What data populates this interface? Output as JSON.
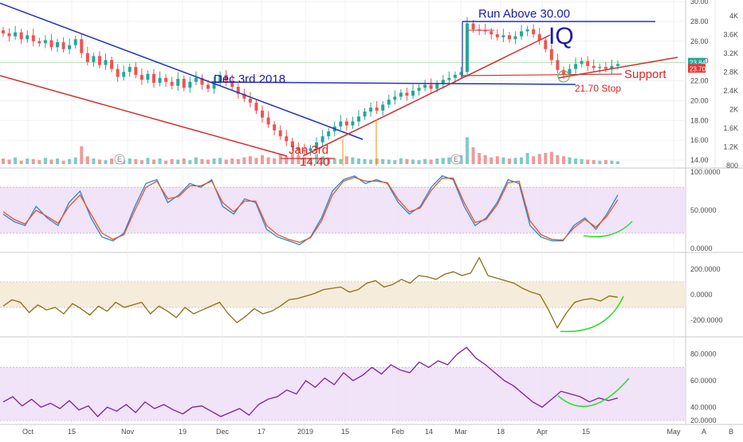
{
  "chart_data": [
    {
      "type": "candlestick",
      "symbol": "IQ",
      "price_axis": {
        "ylim": [
          13.6,
          30
        ],
        "ticks": [
          "30.00",
          "28.00",
          "26.00",
          "24.00",
          "22.00",
          "20.00",
          "18.00",
          "16.00",
          "14.00"
        ]
      },
      "volume_axis": {
        "ticks": [
          "4K",
          "3.6K",
          "3.2K",
          "2.8K",
          "2.4K",
          "2K",
          "1.6K",
          "1.2K",
          "800"
        ]
      },
      "price_badges": [
        {
          "label": "23.84",
          "color": "#26a69a"
        },
        {
          "label": "23.70",
          "color": "#e53935"
        }
      ],
      "annotations": [
        "Run Above 30.00",
        "Dec 3rd 2018",
        "Jan 3rd",
        "14.40",
        "Support",
        "21.70 Stop"
      ],
      "earnings_markers": [
        "E",
        "E"
      ],
      "closes": [
        26.8,
        26.5,
        26.9,
        26.2,
        26.6,
        26.0,
        25.8,
        26.1,
        25.4,
        25.9,
        25.2,
        25.6,
        26.2,
        24.8,
        23.9,
        24.5,
        23.6,
        24.1,
        23.2,
        22.4,
        22.9,
        23.4,
        22.6,
        22.1,
        22.7,
        21.8,
        22.3,
        21.9,
        21.5,
        22.2,
        21.3,
        21.9,
        22.3,
        21.6,
        21.2,
        21.8,
        22.6,
        22.0,
        21.4,
        20.7,
        20.2,
        19.8,
        19.0,
        18.3,
        17.6,
        17.0,
        16.4,
        15.9,
        15.3,
        15.0,
        14.9,
        15.2,
        15.8,
        16.4,
        16.9,
        17.4,
        17.9,
        17.5,
        17.9,
        18.4,
        18.9,
        19.3,
        19.0,
        19.6,
        20.1,
        20.4,
        20.8,
        20.5,
        21.0,
        21.3,
        21.6,
        21.2,
        21.7,
        22.1,
        22.3,
        22.6,
        22.9,
        27.8,
        27.2,
        27.1,
        27.0,
        26.7,
        26.4,
        26.6,
        26.2,
        26.5,
        27.0,
        27.2,
        26.7,
        26.1,
        25.2,
        24.1,
        23.1,
        22.7,
        23.2,
        23.7,
        24.0,
        23.5,
        23.3,
        23.4,
        23.2,
        23.5,
        23.7
      ],
      "closes_note": "approximate daily closes, Oct 2018 – mid Apr 2019",
      "x_ticks": [
        "Oct",
        "15",
        "Nov",
        "19",
        "Dec",
        "17",
        "2019",
        "15",
        "Feb",
        "14",
        "Mar",
        "18",
        "Apr",
        "15",
        "May"
      ],
      "grid": true
    },
    {
      "type": "line",
      "panel": "stochastic",
      "ylim": [
        0,
        100
      ],
      "ticks": [
        "100.0000",
        "50.0000",
        "0.0000"
      ],
      "band": [
        20,
        80
      ],
      "series": [
        {
          "color": "#1e88e5",
          "values": [
            45,
            35,
            30,
            55,
            40,
            30,
            60,
            75,
            40,
            15,
            10,
            20,
            55,
            85,
            90,
            60,
            70,
            85,
            80,
            90,
            55,
            45,
            65,
            60,
            25,
            15,
            10,
            5,
            15,
            40,
            75,
            90,
            95,
            85,
            90,
            85,
            60,
            45,
            55,
            80,
            95,
            90,
            55,
            30,
            40,
            60,
            90,
            85,
            30,
            15,
            10,
            10,
            30,
            40,
            25,
            45,
            70
          ]
        },
        {
          "color": "#f4511e",
          "values": [
            48,
            38,
            32,
            50,
            42,
            33,
            55,
            70,
            45,
            20,
            12,
            18,
            50,
            80,
            88,
            65,
            68,
            82,
            82,
            88,
            60,
            48,
            62,
            62,
            30,
            18,
            12,
            8,
            14,
            36,
            70,
            88,
            93,
            88,
            88,
            86,
            64,
            48,
            53,
            76,
            92,
            92,
            60,
            34,
            38,
            57,
            86,
            88,
            36,
            18,
            12,
            11,
            27,
            38,
            28,
            42,
            64
          ]
        }
      ]
    },
    {
      "type": "line",
      "panel": "oscillator",
      "ylim": [
        -300,
        300
      ],
      "ticks": [
        "200.0000",
        "0.0000",
        "-200.0000"
      ],
      "band": [
        -100,
        100
      ],
      "series": [
        {
          "color": "#8d6e16",
          "values": [
            -90,
            -40,
            -60,
            -140,
            -80,
            -120,
            -100,
            -150,
            -70,
            -110,
            -160,
            -90,
            -130,
            -60,
            -100,
            -80,
            -60,
            -150,
            -90,
            -130,
            -180,
            -100,
            -150,
            -120,
            -90,
            -60,
            -150,
            -220,
            -170,
            -110,
            -150,
            -130,
            -90,
            -40,
            -30,
            -10,
            10,
            40,
            50,
            60,
            20,
            40,
            90,
            110,
            60,
            80,
            120,
            90,
            150,
            140,
            120,
            160,
            180,
            150,
            170,
            290,
            150,
            130,
            110,
            90,
            50,
            20,
            0,
            -120,
            -260,
            -150,
            -60,
            -40,
            -30,
            -50,
            -10,
            -20
          ]
        }
      ]
    },
    {
      "type": "line",
      "panel": "rsi",
      "ylim": [
        30,
        90
      ],
      "ticks": [
        "80.0000",
        "60.0000",
        "40.0000",
        "20.0000"
      ],
      "band": [
        30,
        70
      ],
      "series": [
        {
          "color": "#7b1fa2",
          "values": [
            44,
            48,
            41,
            46,
            40,
            43,
            39,
            45,
            38,
            41,
            33,
            40,
            37,
            42,
            36,
            44,
            39,
            42,
            38,
            35,
            40,
            41,
            37,
            33,
            36,
            39,
            34,
            42,
            46,
            48,
            53,
            50,
            60,
            55,
            62,
            57,
            66,
            60,
            64,
            70,
            65,
            72,
            68,
            66,
            74,
            70,
            75,
            72,
            80,
            85,
            77,
            72,
            66,
            60,
            56,
            50,
            44,
            40,
            46,
            52,
            50,
            48,
            44,
            47,
            45,
            47
          ]
        }
      ]
    }
  ]
}
